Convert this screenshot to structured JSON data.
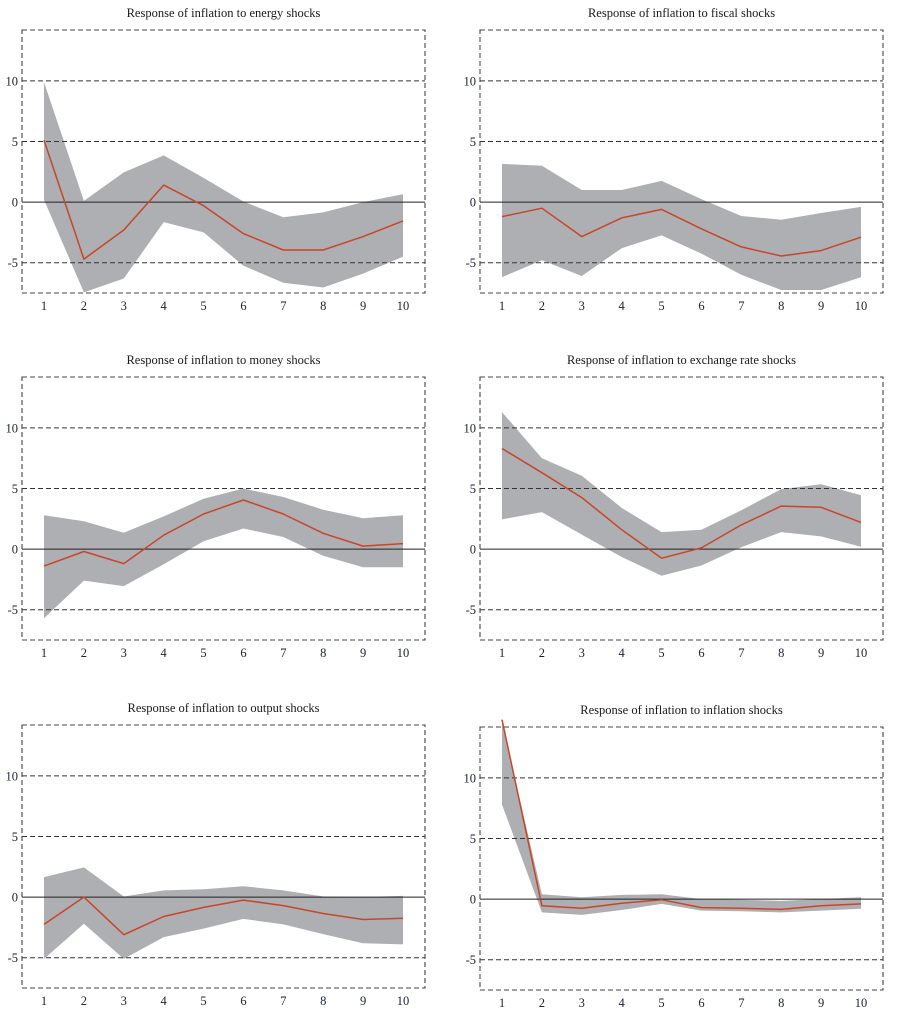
{
  "chart_data": [
    {
      "type": "area",
      "title": "Response of inflation to energy shocks",
      "x": [
        1,
        2,
        3,
        4,
        5,
        6,
        7,
        8,
        9,
        10
      ],
      "xtick_labels": [
        "1",
        "2",
        "3",
        "4",
        "5",
        "6",
        "7",
        "8",
        "9",
        "10"
      ],
      "ytick_values": [
        -5,
        0,
        5,
        10
      ],
      "ytick_labels": [
        "-5",
        "0",
        "5",
        "10"
      ],
      "ylim": [
        -7.5,
        14.2
      ],
      "grid": true,
      "series": [
        {
          "name": "response",
          "values": [
            5.1,
            -4.7,
            -2.3,
            1.4,
            -0.3,
            -2.6,
            -3.95,
            -3.95,
            -2.85,
            -1.55
          ]
        },
        {
          "name": "upper band",
          "values": [
            9.9,
            0.1,
            2.45,
            3.85,
            2.0,
            0.05,
            -1.25,
            -0.85,
            0.0,
            0.65
          ]
        },
        {
          "name": "lower band",
          "values": [
            0.2,
            -7.45,
            -6.3,
            -1.65,
            -2.5,
            -5.25,
            -6.65,
            -7.05,
            -5.9,
            -4.5
          ]
        }
      ]
    },
    {
      "type": "area",
      "title": "Response of inflation to fiscal shocks",
      "x": [
        1,
        2,
        3,
        4,
        5,
        6,
        7,
        8,
        9,
        10
      ],
      "xtick_labels": [
        "1",
        "2",
        "3",
        "4",
        "5",
        "6",
        "7",
        "8",
        "9",
        "10"
      ],
      "ytick_values": [
        -5,
        0,
        5,
        10
      ],
      "ytick_labels": [
        "-5",
        "0",
        "5",
        "10"
      ],
      "ylim": [
        -7.5,
        14.2
      ],
      "grid": true,
      "series": [
        {
          "name": "response",
          "values": [
            -1.2,
            -0.5,
            -2.85,
            -1.3,
            -0.6,
            -2.2,
            -3.7,
            -4.45,
            -4.0,
            -2.9
          ]
        },
        {
          "name": "upper band",
          "values": [
            3.15,
            3.0,
            1.0,
            1.0,
            1.75,
            0.25,
            -1.15,
            -1.45,
            -0.9,
            -0.4
          ]
        },
        {
          "name": "lower band",
          "values": [
            -6.2,
            -4.8,
            -6.1,
            -3.8,
            -2.75,
            -4.25,
            -6.0,
            -7.25,
            -7.25,
            -6.2
          ]
        }
      ]
    },
    {
      "type": "area",
      "title": "Response of inflation to money shocks",
      "x": [
        1,
        2,
        3,
        4,
        5,
        6,
        7,
        8,
        9,
        10
      ],
      "xtick_labels": [
        "1",
        "2",
        "3",
        "4",
        "5",
        "6",
        "7",
        "8",
        "9",
        "10"
      ],
      "ytick_values": [
        -5,
        0,
        5,
        10
      ],
      "ytick_labels": [
        "-5",
        "0",
        "5",
        "10"
      ],
      "ylim": [
        -7.5,
        14.2
      ],
      "grid": true,
      "series": [
        {
          "name": "response",
          "values": [
            -1.4,
            -0.2,
            -1.2,
            1.15,
            2.9,
            4.05,
            2.9,
            1.3,
            0.25,
            0.45
          ]
        },
        {
          "name": "upper band",
          "values": [
            2.8,
            2.3,
            1.35,
            2.7,
            4.15,
            5.0,
            4.3,
            3.25,
            2.55,
            2.8
          ]
        },
        {
          "name": "lower band",
          "values": [
            -5.7,
            -2.6,
            -3.05,
            -1.25,
            0.65,
            1.7,
            1.0,
            -0.55,
            -1.5,
            -1.5
          ]
        }
      ]
    },
    {
      "type": "area",
      "title": "Response of inflation to exchange rate shocks",
      "x": [
        1,
        2,
        3,
        4,
        5,
        6,
        7,
        8,
        9,
        10
      ],
      "xtick_labels": [
        "1",
        "2",
        "3",
        "4",
        "5",
        "6",
        "7",
        "8",
        "9",
        "10"
      ],
      "ytick_values": [
        -5,
        0,
        5,
        10
      ],
      "ytick_labels": [
        "-5",
        "0",
        "5",
        "10"
      ],
      "ylim": [
        -7.5,
        14.2
      ],
      "grid": true,
      "series": [
        {
          "name": "response",
          "values": [
            8.3,
            6.3,
            4.25,
            1.6,
            -0.75,
            0.1,
            2.0,
            3.55,
            3.45,
            2.2
          ]
        },
        {
          "name": "upper band",
          "values": [
            11.3,
            7.5,
            6.05,
            3.4,
            1.4,
            1.6,
            3.2,
            4.95,
            5.35,
            4.45
          ]
        },
        {
          "name": "lower band",
          "values": [
            2.45,
            3.05,
            1.2,
            -0.65,
            -2.2,
            -1.35,
            0.15,
            1.4,
            1.05,
            0.2
          ]
        }
      ]
    },
    {
      "type": "area",
      "title": "Response of inflation to output shocks",
      "x": [
        1,
        2,
        3,
        4,
        5,
        6,
        7,
        8,
        9,
        10
      ],
      "xtick_labels": [
        "1",
        "2",
        "3",
        "4",
        "5",
        "6",
        "7",
        "8",
        "9",
        "10"
      ],
      "ytick_values": [
        -5,
        0,
        5,
        10
      ],
      "ytick_labels": [
        "-5",
        "0",
        "5",
        "10"
      ],
      "ylim": [
        -7.5,
        14.2
      ],
      "grid": true,
      "series": [
        {
          "name": "response",
          "values": [
            -2.25,
            0.0,
            -3.1,
            -1.6,
            -0.85,
            -0.25,
            -0.7,
            -1.35,
            -1.85,
            -1.75
          ]
        },
        {
          "name": "upper band",
          "values": [
            1.65,
            2.45,
            0.05,
            0.55,
            0.65,
            0.9,
            0.55,
            0.05,
            0.0,
            0.1
          ]
        },
        {
          "name": "lower band",
          "values": [
            -5.1,
            -2.2,
            -5.1,
            -3.3,
            -2.6,
            -1.8,
            -2.25,
            -3.05,
            -3.8,
            -3.9
          ]
        }
      ]
    },
    {
      "type": "area",
      "title": "Response of inflation to inflation shocks",
      "x": [
        1,
        2,
        3,
        4,
        5,
        6,
        7,
        8,
        9,
        10
      ],
      "xtick_labels": [
        "1",
        "2",
        "3",
        "4",
        "5",
        "6",
        "7",
        "8",
        "9",
        "10"
      ],
      "ytick_values": [
        -5,
        0,
        5,
        10
      ],
      "ytick_labels": [
        "-5",
        "0",
        "5",
        "10"
      ],
      "ylim": [
        -7.5,
        14.2
      ],
      "grid": true,
      "series": [
        {
          "name": "response",
          "values": [
            14.8,
            -0.55,
            -0.75,
            -0.35,
            -0.05,
            -0.7,
            -0.75,
            -0.85,
            -0.55,
            -0.4
          ]
        },
        {
          "name": "upper band",
          "values": [
            14.6,
            0.4,
            0.15,
            0.35,
            0.4,
            0.0,
            -0.05,
            -0.15,
            0.0,
            0.15
          ]
        },
        {
          "name": "lower band",
          "values": [
            7.8,
            -1.1,
            -1.3,
            -0.9,
            -0.4,
            -0.95,
            -1.0,
            -1.1,
            -0.95,
            -0.8
          ]
        }
      ]
    }
  ],
  "colors": {
    "response_line": "#c8452a",
    "confidence_band": "#aeafb2"
  }
}
